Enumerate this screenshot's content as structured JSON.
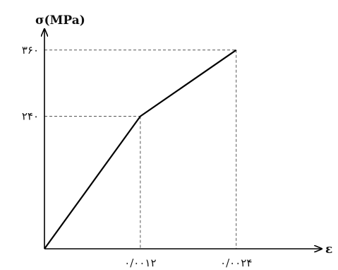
{
  "chart_data": {
    "type": "line",
    "ylabel": "σ(MPa)",
    "xlabel": "ε",
    "x": [
      0,
      0.0012,
      0.0024
    ],
    "series": [
      {
        "values": [
          0,
          240,
          360
        ]
      }
    ],
    "xlim": [
      0,
      0.0031
    ],
    "ylim": [
      0,
      425
    ],
    "x_ticks": [
      {
        "value": 0.0012,
        "label": "۰/۰۰۱۲"
      },
      {
        "value": 0.0024,
        "label": "۰/۰۰۲۴"
      }
    ],
    "y_ticks": [
      {
        "value": 240,
        "label": "۲۴۰"
      },
      {
        "value": 360,
        "label": "۳۶۰"
      }
    ],
    "guide_lines": "dashed",
    "grid": false,
    "colors": {
      "line": "#000000",
      "guide": "#555555"
    }
  }
}
